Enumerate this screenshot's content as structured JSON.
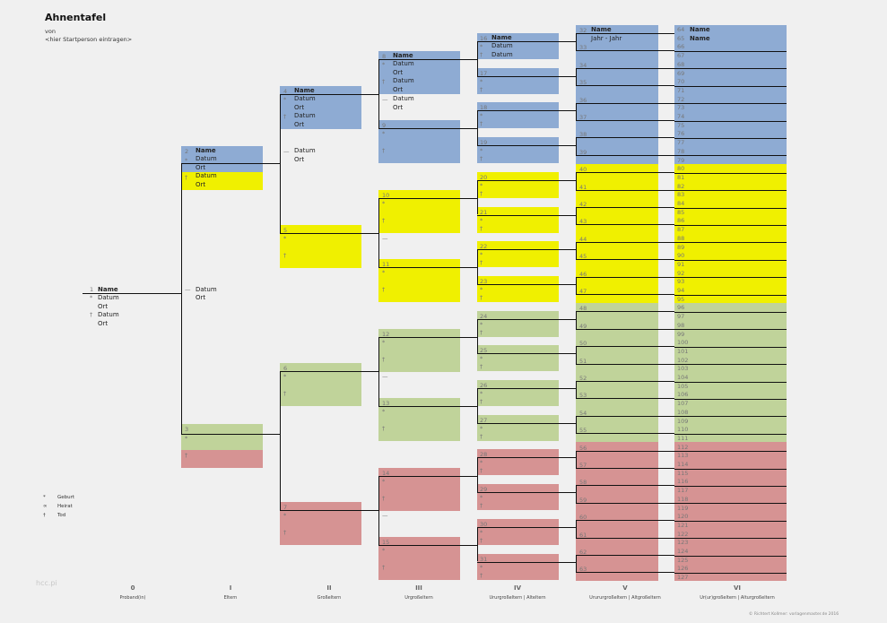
{
  "title": "Ahnentafel",
  "von": "von",
  "startperson": "<hier Startperson eintragen>",
  "watermark": "hcc.pi",
  "copyright": "© Richtert Kollmer: vorlagenmaster.de 2016",
  "symbols": {
    "birth": "*",
    "marriage": "∞",
    "death": "†",
    "dash": "—"
  },
  "labels": {
    "name": "Name",
    "datum": "Datum",
    "ort": "Ort",
    "jahr": "Jahr - Jahr"
  },
  "legend": [
    {
      "sym": "*",
      "label": "Geburt"
    },
    {
      "sym": "∞",
      "label": "Heirat"
    },
    {
      "sym": "†",
      "label": "Tod"
    }
  ],
  "generations": [
    {
      "roman": "0",
      "label": "Proband(in)"
    },
    {
      "roman": "I",
      "label": "Eltern"
    },
    {
      "roman": "II",
      "label": "Großeltern"
    },
    {
      "roman": "III",
      "label": "Urgroßeltern"
    },
    {
      "roman": "IV",
      "label": "Ururgroßeltern | Alteltern"
    },
    {
      "roman": "V",
      "label": "Urururgroßeltern | Altgroßeltern"
    },
    {
      "roman": "VI",
      "label": "Ur(ur)großeltern | Alturgroßeltern"
    }
  ],
  "colors": {
    "blue": "#8eabd3",
    "yellow": "#f0f000",
    "green": "#c0d39a",
    "red": "#d69393"
  }
}
